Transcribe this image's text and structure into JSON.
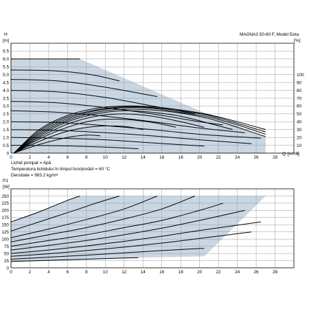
{
  "chart_data": [
    {
      "type": "line",
      "title": "MAGNA3 50-60 F, Model E",
      "ylabel": "H",
      "yunit": "[m]",
      "xlabel": "Q",
      "xunit": "[m³/h]",
      "y2label": "eta",
      "y2unit": "[%]",
      "xlim": [
        0,
        30
      ],
      "ylim": [
        0,
        7
      ],
      "y2lim": [
        0,
        140
      ],
      "xticks": [
        "0",
        "2",
        "4",
        "6",
        "8",
        "10",
        "12",
        "14",
        "16",
        "18",
        "20",
        "22",
        "24",
        "26",
        "28"
      ],
      "yticks": [
        "0",
        "0.5",
        "1.0",
        "1.5",
        "2.0",
        "2.5",
        "3.0",
        "3.5",
        "4.0",
        "4.5",
        "5.0",
        "5.5",
        "6.0",
        "6.5"
      ],
      "y2ticks": [
        "0",
        "10",
        "20",
        "30",
        "40",
        "50",
        "60",
        "70",
        "80",
        "90",
        "100"
      ],
      "grid": true,
      "operating_area": {
        "x": [
          0,
          7.3,
          20,
          27,
          27,
          0
        ],
        "y": [
          6.0,
          6.0,
          2.7,
          1.0,
          0.0,
          0.0
        ]
      },
      "head_curves": [
        {
          "x": [
            0,
            7.3
          ],
          "y": [
            6.0,
            6.0
          ]
        },
        {
          "x": [
            0,
            4.5,
            8.5,
            11.5
          ],
          "y": [
            5.3,
            5.25,
            5.0,
            4.6
          ]
        },
        {
          "x": [
            0,
            5,
            10,
            15.5
          ],
          "y": [
            4.7,
            4.6,
            4.2,
            3.6
          ]
        },
        {
          "x": [
            0,
            5,
            10,
            15,
            19.5
          ],
          "y": [
            4.0,
            3.9,
            3.55,
            3.0,
            2.5
          ]
        },
        {
          "x": [
            0,
            5,
            10,
            15,
            20,
            22.5
          ],
          "y": [
            3.3,
            3.2,
            2.9,
            2.5,
            2.0,
            1.8
          ]
        },
        {
          "x": [
            0,
            5,
            10,
            15,
            20,
            24.8
          ],
          "y": [
            2.7,
            2.6,
            2.35,
            2.0,
            1.6,
            1.3
          ]
        },
        {
          "x": [
            0,
            5,
            10,
            15,
            20,
            26.5
          ],
          "y": [
            2.0,
            1.95,
            1.75,
            1.5,
            1.2,
            0.95
          ]
        },
        {
          "x": [
            0,
            5,
            10,
            15,
            20,
            25.5
          ],
          "y": [
            1.5,
            1.45,
            1.3,
            1.1,
            0.85,
            0.6
          ]
        },
        {
          "x": [
            0,
            5,
            10,
            15,
            20.5
          ],
          "y": [
            1.0,
            0.95,
            0.85,
            0.65,
            0.45
          ]
        },
        {
          "x": [
            0,
            5,
            10,
            13.5
          ],
          "y": [
            0.5,
            0.47,
            0.38,
            0.28
          ]
        }
      ],
      "eta_curves": [
        {
          "x": [
            0.3,
            3,
            6,
            9,
            12,
            15,
            18,
            21,
            24,
            27
          ],
          "y": [
            0,
            30,
            48,
            57,
            60,
            59,
            55,
            49,
            40,
            30
          ]
        },
        {
          "x": [
            0.3,
            3,
            6,
            9,
            12,
            15,
            18,
            21,
            24,
            27
          ],
          "y": [
            0,
            28,
            46,
            55,
            59,
            58,
            54,
            48,
            38,
            27
          ]
        },
        {
          "x": [
            0.3,
            3,
            6,
            9,
            12,
            15,
            18,
            21,
            24,
            27
          ],
          "y": [
            0,
            26,
            44,
            54,
            58,
            57,
            52,
            46,
            36,
            24
          ]
        },
        {
          "x": [
            0.3,
            3,
            6,
            9,
            12,
            15,
            18,
            21,
            24,
            27
          ],
          "y": [
            0,
            24,
            42,
            52,
            56,
            55,
            51,
            44,
            33,
            21
          ]
        },
        {
          "x": [
            0.3,
            3,
            6,
            9,
            12,
            15,
            18,
            21,
            23.5
          ],
          "y": [
            0,
            22,
            40,
            50,
            54,
            52,
            47,
            38,
            30
          ]
        },
        {
          "x": [
            0.3,
            3,
            6,
            9,
            12,
            15,
            18,
            20.5
          ],
          "y": [
            0,
            20,
            37,
            47,
            50,
            47,
            40,
            33
          ]
        },
        {
          "x": [
            0.3,
            3,
            6,
            9,
            12,
            15,
            17.5
          ],
          "y": [
            0,
            18,
            33,
            42,
            43,
            39,
            33
          ]
        },
        {
          "x": [
            0.3,
            3,
            6,
            9,
            12,
            14
          ],
          "y": [
            0,
            15,
            28,
            34,
            34,
            30
          ]
        },
        {
          "x": [
            0.3,
            3,
            6,
            8,
            9.5
          ],
          "y": [
            0,
            11,
            20,
            23,
            22
          ]
        }
      ]
    },
    {
      "type": "line",
      "ylabel": "P1",
      "yunit": "[W]",
      "xlim": [
        0,
        30
      ],
      "ylim": [
        0,
        275
      ],
      "xticks": [
        "0",
        "2",
        "4",
        "6",
        "8",
        "10",
        "12",
        "14",
        "16",
        "18",
        "20",
        "22",
        "24",
        "26",
        "28"
      ],
      "yticks": [
        "0",
        "25",
        "50",
        "75",
        "100",
        "125",
        "150",
        "175",
        "200",
        "225",
        "250"
      ],
      "grid": true,
      "operating_area": {
        "x": [
          0,
          7.3,
          27,
          27,
          20.5,
          13.5,
          0
        ],
        "y": [
          160,
          250,
          250,
          250,
          40,
          35,
          20
        ]
      },
      "power_curves": [
        {
          "x": [
            0,
            3,
            6,
            7.3
          ],
          "y": [
            160,
            195,
            235,
            250
          ]
        },
        {
          "x": [
            0,
            3,
            6,
            9,
            11.5
          ],
          "y": [
            128,
            160,
            192,
            225,
            250
          ]
        },
        {
          "x": [
            0,
            4,
            8,
            12,
            15.5
          ],
          "y": [
            105,
            135,
            168,
            205,
            250
          ]
        },
        {
          "x": [
            0,
            4,
            8,
            12,
            16,
            19.5
          ],
          "y": [
            90,
            115,
            140,
            170,
            205,
            250
          ]
        },
        {
          "x": [
            0,
            4,
            8,
            12,
            16,
            20,
            22.5
          ],
          "y": [
            75,
            95,
            115,
            140,
            165,
            200,
            225
          ]
        },
        {
          "x": [
            0,
            4,
            8,
            12,
            16,
            20,
            24.8
          ],
          "y": [
            62,
            78,
            95,
            115,
            138,
            165,
            200
          ]
        },
        {
          "x": [
            0,
            4,
            8,
            12,
            16,
            20,
            26.5
          ],
          "y": [
            50,
            62,
            76,
            92,
            110,
            130,
            160
          ]
        },
        {
          "x": [
            0,
            4,
            8,
            12,
            16,
            20,
            25.5
          ],
          "y": [
            40,
            49,
            60,
            72,
            86,
            102,
            125
          ]
        },
        {
          "x": [
            0,
            4,
            8,
            12,
            16,
            20.5
          ],
          "y": [
            30,
            37,
            44,
            52,
            60,
            68
          ]
        },
        {
          "x": [
            0,
            4,
            8,
            12,
            13.5
          ],
          "y": [
            22,
            26,
            30,
            34,
            35
          ]
        }
      ]
    }
  ],
  "annotations": {
    "line1": "Lichid pompat = Apă",
    "line2": "Temperatura lichidului în timpul funcționării = 60 °C",
    "line3": "Densitate = 983.2 kg/m³"
  },
  "colors": {
    "area_fill": "#c9d6e3",
    "curve": "#000000",
    "grid": "#9a9a9a",
    "frame": "#000000"
  }
}
